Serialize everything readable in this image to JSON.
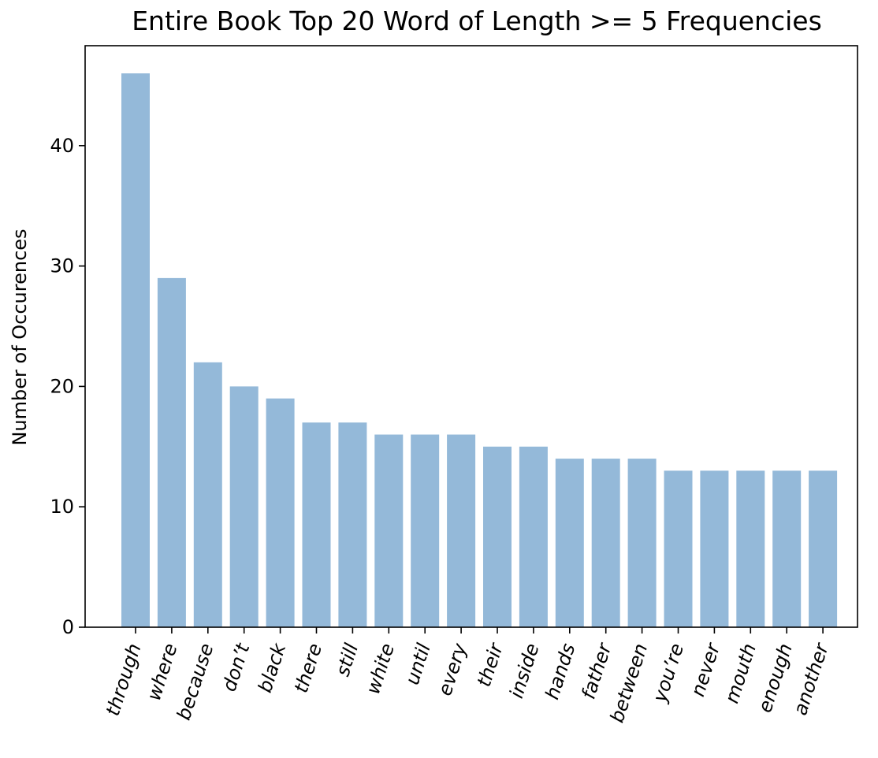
{
  "chart_data": {
    "type": "bar",
    "title": "Entire Book Top 20 Word of Length >= 5 Frequencies",
    "xlabel": "",
    "ylabel": "Number of Occurences",
    "categories": [
      "through",
      "where",
      "because",
      "don’t",
      "black",
      "there",
      "still",
      "white",
      "until",
      "every",
      "their",
      "inside",
      "hands",
      "father",
      "between",
      "you’re",
      "never",
      "mouth",
      "enough",
      "another"
    ],
    "values": [
      46,
      29,
      22,
      20,
      19,
      17,
      17,
      16,
      16,
      16,
      15,
      15,
      14,
      14,
      14,
      13,
      13,
      13,
      13,
      13
    ],
    "yticks": [
      0,
      10,
      20,
      30,
      40
    ],
    "ylim": [
      0,
      48.3
    ],
    "bar_color": "#94b9d9",
    "bar_opacity": 1,
    "grid": false,
    "legend": "none"
  }
}
